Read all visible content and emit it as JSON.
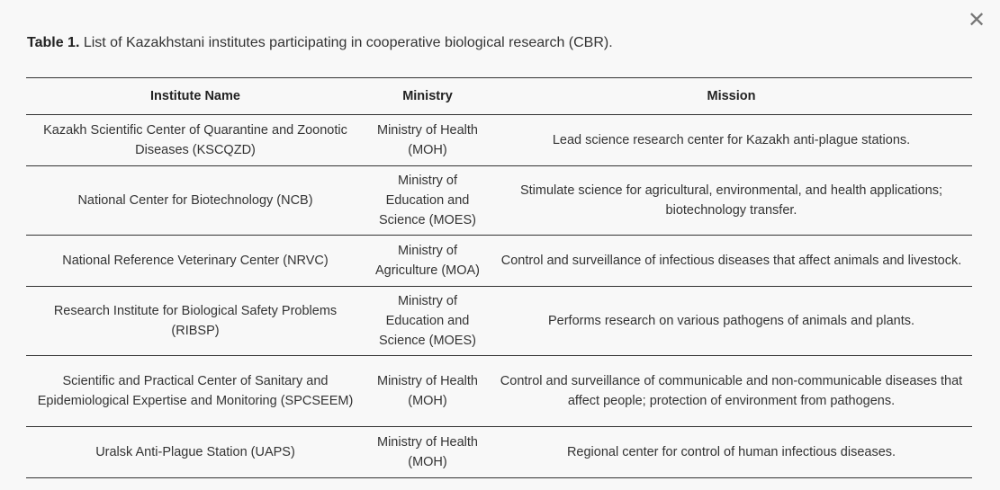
{
  "dialog": {
    "close_icon": "close-icon",
    "close_glyph": "✕"
  },
  "caption": {
    "label": "Table 1.",
    "text": " List of Kazakhstani institutes participating in cooperative biological research (CBR)."
  },
  "table": {
    "headers": [
      "Institute Name",
      "Ministry",
      "Mission"
    ],
    "rows": [
      {
        "institute": "Kazakh Scientific Center of Quarantine and Zoonotic Diseases (KSCQZD)",
        "ministry": "Ministry of Health (MOH)",
        "mission": "Lead science research center for Kazakh anti-plague stations."
      },
      {
        "institute": "National Center for Biotechnology (NCB)",
        "ministry": "Ministry of Education and Science (MOES)",
        "mission": "Stimulate science for agricultural, environmental, and health applications; biotechnology transfer."
      },
      {
        "institute": "National Reference Veterinary Center (NRVC)",
        "ministry": "Ministry of Agriculture (MOA)",
        "mission": "Control and surveillance of infectious diseases that affect animals and livestock."
      },
      {
        "institute": "Research Institute for Biological Safety Problems (RIBSP)",
        "ministry": "Ministry of Education and Science (MOES)",
        "mission": "Performs research on various pathogens of animals and plants."
      },
      {
        "institute": "Scientific and Practical Center of Sanitary and Epidemiological Expertise and Monitoring (SPCSEEM)",
        "ministry": "Ministry of Health (MOH)",
        "mission": "Control and surveillance of communicable and non-communicable diseases that affect people; protection of environment from pathogens."
      },
      {
        "institute": "Uralsk Anti-Plague Station (UAPS)",
        "ministry": "Ministry of Health (MOH)",
        "mission": "Regional center for control of human infectious diseases."
      }
    ]
  }
}
